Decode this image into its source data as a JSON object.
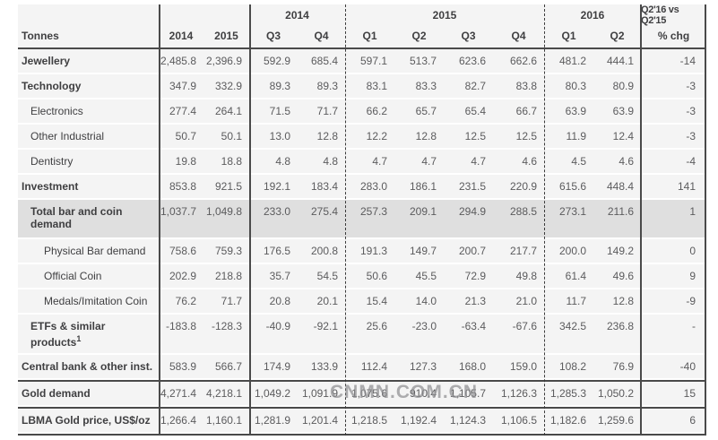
{
  "header": {
    "corner": "Tonnes",
    "groups": {
      "g2014": "2014",
      "g2015": "2015",
      "g2016": "2016",
      "gchg": "Q2'16 vs Q2'15"
    },
    "cols": [
      "2014",
      "2015",
      "Q3",
      "Q4",
      "Q1",
      "Q2",
      "Q3",
      "Q4",
      "Q1",
      "Q2"
    ],
    "chg_label": "% chg"
  },
  "rows": [
    {
      "label": "Jewellery",
      "indent": 0,
      "bold": true,
      "shaded": false,
      "tall": false,
      "rule_above": false,
      "values": [
        "2,485.8",
        "2,396.9",
        "592.9",
        "685.4",
        "597.1",
        "513.7",
        "623.6",
        "662.6",
        "481.2",
        "444.1"
      ],
      "chg": "-14"
    },
    {
      "label": "Technology",
      "indent": 0,
      "bold": true,
      "shaded": false,
      "tall": false,
      "rule_above": false,
      "values": [
        "347.9",
        "332.9",
        "89.3",
        "89.3",
        "83.1",
        "83.3",
        "82.7",
        "83.8",
        "80.3",
        "80.9"
      ],
      "chg": "-3"
    },
    {
      "label": "Electronics",
      "indent": 1,
      "bold": false,
      "shaded": false,
      "tall": false,
      "rule_above": false,
      "values": [
        "277.4",
        "264.1",
        "71.5",
        "71.7",
        "66.2",
        "65.7",
        "65.4",
        "66.7",
        "63.9",
        "63.9"
      ],
      "chg": "-3"
    },
    {
      "label": "Other Industrial",
      "indent": 1,
      "bold": false,
      "shaded": false,
      "tall": false,
      "rule_above": false,
      "values": [
        "50.7",
        "50.1",
        "13.0",
        "12.8",
        "12.2",
        "12.8",
        "12.5",
        "12.5",
        "11.9",
        "12.4"
      ],
      "chg": "-3"
    },
    {
      "label": "Dentistry",
      "indent": 1,
      "bold": false,
      "shaded": false,
      "tall": false,
      "rule_above": false,
      "values": [
        "19.8",
        "18.8",
        "4.8",
        "4.8",
        "4.7",
        "4.7",
        "4.7",
        "4.6",
        "4.5",
        "4.6"
      ],
      "chg": "-4"
    },
    {
      "label": "Investment",
      "indent": 0,
      "bold": true,
      "shaded": false,
      "tall": false,
      "rule_above": false,
      "values": [
        "853.8",
        "921.5",
        "192.1",
        "183.4",
        "283.0",
        "186.1",
        "231.5",
        "220.9",
        "615.6",
        "448.4"
      ],
      "chg": "141"
    },
    {
      "label": "Total bar and coin demand",
      "indent": 1,
      "bold": true,
      "shaded": true,
      "tall": true,
      "rule_above": false,
      "values": [
        "1,037.7",
        "1,049.8",
        "233.0",
        "275.4",
        "257.3",
        "209.1",
        "294.9",
        "288.5",
        "273.1",
        "211.6"
      ],
      "chg": "1"
    },
    {
      "label": "Physical Bar demand",
      "indent": 2,
      "bold": false,
      "shaded": false,
      "tall": false,
      "rule_above": false,
      "values": [
        "758.6",
        "759.3",
        "176.5",
        "200.8",
        "191.3",
        "149.7",
        "200.7",
        "217.7",
        "200.0",
        "149.2"
      ],
      "chg": "0"
    },
    {
      "label": "Official Coin",
      "indent": 2,
      "bold": false,
      "shaded": false,
      "tall": false,
      "rule_above": false,
      "values": [
        "202.9",
        "218.8",
        "35.7",
        "54.5",
        "50.6",
        "45.5",
        "72.9",
        "49.8",
        "61.4",
        "49.6"
      ],
      "chg": "9"
    },
    {
      "label": "Medals/Imitation Coin",
      "indent": 2,
      "bold": false,
      "shaded": false,
      "tall": false,
      "rule_above": false,
      "values": [
        "76.2",
        "71.7",
        "20.8",
        "20.1",
        "15.4",
        "14.0",
        "21.3",
        "21.0",
        "11.7",
        "12.8"
      ],
      "chg": "-9"
    },
    {
      "label": "ETFs & similar products",
      "sup": "1",
      "indent": 1,
      "bold": true,
      "shaded": false,
      "tall": true,
      "rule_above": false,
      "values": [
        "-183.8",
        "-128.3",
        "-40.9",
        "-92.1",
        "25.6",
        "-23.0",
        "-63.4",
        "-67.6",
        "342.5",
        "236.8"
      ],
      "chg": "-"
    },
    {
      "label": "Central bank & other inst.",
      "indent": 0,
      "bold": true,
      "shaded": false,
      "tall": false,
      "rule_above": false,
      "values": [
        "583.9",
        "566.7",
        "174.9",
        "133.9",
        "112.4",
        "127.3",
        "168.0",
        "159.0",
        "108.2",
        "76.9"
      ],
      "chg": "-40"
    },
    {
      "label": "Gold demand",
      "indent": 0,
      "bold": true,
      "shaded": false,
      "tall": false,
      "rule_above": true,
      "values": [
        "4,271.4",
        "4,218.1",
        "1,049.2",
        "1,091.9",
        "1,075.6",
        "910.4",
        "1,105.7",
        "1,126.3",
        "1,285.3",
        "1,050.2"
      ],
      "chg": "15"
    },
    {
      "label": "LBMA Gold price, US$/oz",
      "indent": 0,
      "bold": true,
      "shaded": false,
      "tall": false,
      "rule_above": true,
      "values": [
        "1,266.4",
        "1,160.1",
        "1,281.9",
        "1,201.4",
        "1,218.5",
        "1,192.4",
        "1,124.3",
        "1,106.5",
        "1,182.6",
        "1,259.6"
      ],
      "chg": "6"
    }
  ],
  "watermark": "CNMN.COM.CN",
  "colors": {
    "rule": "#4a4a4a",
    "row_bg": "#f4f4f4",
    "shaded_row_bg": "#dfdfdf",
    "label_text": "#3f3f41",
    "value_text": "#5b5b5d"
  }
}
